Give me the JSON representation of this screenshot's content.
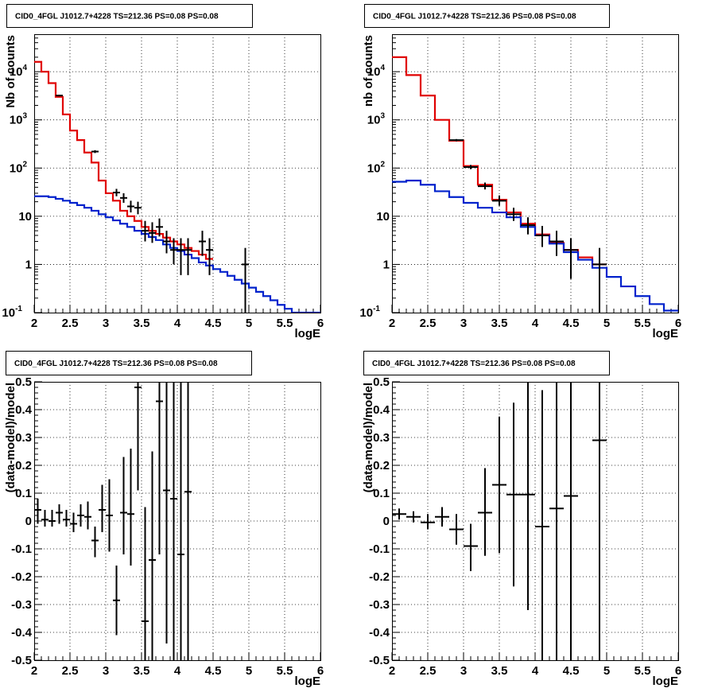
{
  "title": "CID0_4FGL J1012.7+4228 TS=212.36 PS=0.08 PS=0.08",
  "colors": {
    "data": "#000000",
    "total_model": "#e00000",
    "background_model": "#0022cc"
  },
  "chart_data": [
    {
      "type": "line",
      "panel": "top-left",
      "title": "CID0_4FGL J1012.7+4228 TS=212.36 PS=0.08 PS=0.08",
      "xlabel": "logE",
      "ylabel": "Nb of counts",
      "xlim": [
        2,
        6
      ],
      "ylim": [
        0.1,
        60000
      ],
      "yscale": "log",
      "grid": true,
      "x_ticks": [
        "2",
        "2.5",
        "3",
        "3.5",
        "4",
        "4.5",
        "5",
        "5.5",
        "6"
      ],
      "y_ticks": [
        {
          "mantissa": "10",
          "exp": "-1",
          "value": 0.1
        },
        {
          "mantissa": "1",
          "exp": "",
          "value": 1
        },
        {
          "mantissa": "10",
          "exp": "",
          "value": 10
        },
        {
          "mantissa": "10",
          "exp": "2",
          "value": 100
        },
        {
          "mantissa": "10",
          "exp": "3",
          "value": 1000
        },
        {
          "mantissa": "10",
          "exp": "4",
          "value": 10000
        }
      ],
      "bin_edges": [
        2.0,
        2.1,
        2.2,
        2.3,
        2.4,
        2.5,
        2.6,
        2.7,
        2.8,
        2.9,
        3.0,
        3.1,
        3.2,
        3.3,
        3.4,
        3.5,
        3.6,
        3.7,
        3.8,
        3.9,
        4.0,
        4.1,
        4.2,
        4.3,
        4.4,
        4.5,
        4.6,
        4.7,
        4.8,
        4.9,
        5.0,
        5.1,
        5.2,
        5.3,
        5.4,
        5.5,
        5.6,
        5.7,
        5.8,
        5.9,
        6.0
      ],
      "series": [
        {
          "name": "total model",
          "kind": "step",
          "color": "#e00000",
          "values": [
            16000,
            10000,
            5800,
            3000,
            1300,
            600,
            380,
            210,
            130,
            55,
            30,
            21,
            13,
            10,
            8,
            6,
            5,
            4.3,
            3.6,
            3.0,
            2.6,
            2.2,
            1.9,
            1.6,
            1.3
          ]
        },
        {
          "name": "background model",
          "kind": "step",
          "color": "#0022cc",
          "values": [
            26,
            26,
            25,
            23,
            21,
            19,
            17,
            15,
            13,
            11,
            9.5,
            8.2,
            7,
            6,
            5,
            4.3,
            3.7,
            3.2,
            2.6,
            2.2,
            1.9,
            1.6,
            1.35,
            1.1,
            0.95,
            0.8,
            0.7,
            0.58,
            0.48,
            0.4,
            0.33,
            0.27,
            0.22,
            0.18,
            0.145,
            0.12,
            0.1,
            0.1,
            0.1,
            0.1
          ]
        },
        {
          "name": "data",
          "kind": "errorbar",
          "color": "#000000",
          "points": [
            {
              "x": 2.35,
              "y": 3200,
              "lo": 3080,
              "hi": 3320,
              "xerr": 0.05
            },
            {
              "x": 2.85,
              "y": 220,
              "lo": 205,
              "hi": 235,
              "xerr": 0.05
            },
            {
              "x": 3.15,
              "y": 31,
              "lo": 26,
              "hi": 37,
              "xerr": 0.05
            },
            {
              "x": 3.25,
              "y": 24,
              "lo": 19,
              "hi": 30,
              "xerr": 0.05
            },
            {
              "x": 3.35,
              "y": 16,
              "lo": 12,
              "hi": 21,
              "xerr": 0.05
            },
            {
              "x": 3.45,
              "y": 15,
              "lo": 11,
              "hi": 20,
              "xerr": 0.05
            },
            {
              "x": 3.55,
              "y": 5,
              "lo": 3,
              "hi": 8,
              "xerr": 0.05
            },
            {
              "x": 3.65,
              "y": 4.5,
              "lo": 2.8,
              "hi": 7.5,
              "xerr": 0.05
            },
            {
              "x": 3.75,
              "y": 6,
              "lo": 3.8,
              "hi": 9,
              "xerr": 0.05
            },
            {
              "x": 3.85,
              "y": 3,
              "lo": 1.7,
              "hi": 5,
              "xerr": 0.05
            },
            {
              "x": 3.95,
              "y": 2,
              "lo": 1.0,
              "hi": 3.5,
              "xerr": 0.05
            },
            {
              "x": 4.05,
              "y": 2,
              "lo": 0.6,
              "hi": 3.5,
              "xerr": 0.05
            },
            {
              "x": 4.15,
              "y": 2,
              "lo": 0.6,
              "hi": 3.5,
              "xerr": 0.05
            },
            {
              "x": 4.35,
              "y": 3,
              "lo": 1.5,
              "hi": 5,
              "xerr": 0.05
            },
            {
              "x": 4.45,
              "y": 2,
              "lo": 0.6,
              "hi": 3.5,
              "xerr": 0.05
            },
            {
              "x": 4.95,
              "y": 1,
              "lo": 0.1,
              "hi": 2.2,
              "xerr": 0.05
            }
          ]
        }
      ]
    },
    {
      "type": "line",
      "panel": "top-right",
      "title": "CID0_4FGL J1012.7+4228 TS=212.36 PS=0.08 PS=0.08",
      "xlabel": "logE",
      "ylabel": "nb of counts",
      "xlim": [
        2,
        6
      ],
      "ylim": [
        0.1,
        60000
      ],
      "yscale": "log",
      "grid": true,
      "x_ticks": [
        "2",
        "2.5",
        "3",
        "3.5",
        "4",
        "4.5",
        "5",
        "5.5",
        "6"
      ],
      "y_ticks": [
        {
          "mantissa": "10",
          "exp": "-1",
          "value": 0.1
        },
        {
          "mantissa": "1",
          "exp": "",
          "value": 1
        },
        {
          "mantissa": "10",
          "exp": "",
          "value": 10
        },
        {
          "mantissa": "10",
          "exp": "2",
          "value": 100
        },
        {
          "mantissa": "10",
          "exp": "3",
          "value": 1000
        },
        {
          "mantissa": "10",
          "exp": "4",
          "value": 10000
        }
      ],
      "bin_edges": [
        2.0,
        2.2,
        2.4,
        2.6,
        2.8,
        3.0,
        3.2,
        3.4,
        3.6,
        3.8,
        4.0,
        4.2,
        4.4,
        4.6,
        4.8,
        5.0,
        5.2,
        5.4,
        5.6,
        5.8,
        6.0
      ],
      "series": [
        {
          "name": "total model",
          "kind": "step",
          "color": "#e00000",
          "values": [
            20000,
            8500,
            3200,
            1000,
            370,
            110,
            45,
            22,
            12,
            7,
            4.2,
            2.8,
            2.0,
            1.4,
            1.0
          ]
        },
        {
          "name": "background model",
          "kind": "step",
          "color": "#0022cc",
          "values": [
            52,
            55,
            45,
            33,
            25,
            19,
            15,
            12,
            9.5,
            6,
            4,
            2.7,
            1.8,
            1.25,
            0.85,
            0.55,
            0.35,
            0.22,
            0.15,
            0.11
          ]
        },
        {
          "name": "data",
          "kind": "errorbar",
          "color": "#000000",
          "points": [
            {
              "x": 2.9,
              "y": 380,
              "lo": 360,
              "hi": 400,
              "xerr": 0.1
            },
            {
              "x": 3.1,
              "y": 105,
              "lo": 95,
              "hi": 116,
              "xerr": 0.1
            },
            {
              "x": 3.3,
              "y": 42,
              "lo": 36,
              "hi": 50,
              "xerr": 0.1
            },
            {
              "x": 3.5,
              "y": 21,
              "lo": 16.5,
              "hi": 27,
              "xerr": 0.1
            },
            {
              "x": 3.7,
              "y": 11,
              "lo": 8,
              "hi": 15,
              "xerr": 0.1
            },
            {
              "x": 3.9,
              "y": 6.5,
              "lo": 4.2,
              "hi": 9.5,
              "xerr": 0.1
            },
            {
              "x": 4.1,
              "y": 4,
              "lo": 2.3,
              "hi": 6.3,
              "xerr": 0.1
            },
            {
              "x": 4.3,
              "y": 3,
              "lo": 1.5,
              "hi": 5,
              "xerr": 0.1
            },
            {
              "x": 4.5,
              "y": 2,
              "lo": 0.5,
              "hi": 3.5,
              "xerr": 0.1
            },
            {
              "x": 4.9,
              "y": 1,
              "lo": 0.1,
              "hi": 2.2,
              "xerr": 0.1
            }
          ]
        }
      ]
    },
    {
      "type": "scatter",
      "panel": "bottom-left",
      "title": "CID0_4FGL J1012.7+4228 TS=212.36 PS=0.08 PS=0.08",
      "xlabel": "logE",
      "ylabel": "(data-model)/model",
      "xlim": [
        2,
        6
      ],
      "ylim": [
        -0.5,
        0.5
      ],
      "yscale": "linear",
      "grid": true,
      "x_ticks": [
        "2",
        "2.5",
        "3",
        "3.5",
        "4",
        "4.5",
        "5",
        "5.5",
        "6"
      ],
      "y_ticks": [
        {
          "mantissa": "-0.5",
          "exp": "",
          "value": -0.5
        },
        {
          "mantissa": "-0.4",
          "exp": "",
          "value": -0.4
        },
        {
          "mantissa": "-0.3",
          "exp": "",
          "value": -0.3
        },
        {
          "mantissa": "-0.2",
          "exp": "",
          "value": -0.2
        },
        {
          "mantissa": "-0.1",
          "exp": "",
          "value": -0.1
        },
        {
          "mantissa": "0",
          "exp": "",
          "value": 0
        },
        {
          "mantissa": "0.1",
          "exp": "",
          "value": 0.1
        },
        {
          "mantissa": "0.2",
          "exp": "",
          "value": 0.2
        },
        {
          "mantissa": "0.3",
          "exp": "",
          "value": 0.3
        },
        {
          "mantissa": "0.4",
          "exp": "",
          "value": 0.4
        },
        {
          "mantissa": "0.5",
          "exp": "",
          "value": 0.5
        }
      ],
      "series": [
        {
          "name": "residuals",
          "kind": "errorbar",
          "color": "#000000",
          "points": [
            {
              "x": 2.05,
              "y": 0.04,
              "lo": -0.01,
              "hi": 0.08,
              "xerr": 0.05
            },
            {
              "x": 2.15,
              "y": 0.005,
              "lo": -0.02,
              "hi": 0.04,
              "xerr": 0.05
            },
            {
              "x": 2.25,
              "y": 0.0,
              "lo": -0.02,
              "hi": 0.04,
              "xerr": 0.05
            },
            {
              "x": 2.35,
              "y": 0.03,
              "lo": -0.01,
              "hi": 0.06,
              "xerr": 0.05
            },
            {
              "x": 2.45,
              "y": 0.005,
              "lo": -0.02,
              "hi": 0.04,
              "xerr": 0.05
            },
            {
              "x": 2.55,
              "y": -0.01,
              "lo": -0.04,
              "hi": 0.03,
              "xerr": 0.05
            },
            {
              "x": 2.65,
              "y": 0.02,
              "lo": -0.02,
              "hi": 0.06,
              "xerr": 0.05
            },
            {
              "x": 2.75,
              "y": 0.015,
              "lo": -0.03,
              "hi": 0.07,
              "xerr": 0.05
            },
            {
              "x": 2.85,
              "y": -0.07,
              "lo": -0.13,
              "hi": -0.02,
              "xerr": 0.05
            },
            {
              "x": 2.95,
              "y": 0.04,
              "lo": -0.04,
              "hi": 0.13,
              "xerr": 0.05
            },
            {
              "x": 3.05,
              "y": 0.02,
              "lo": -0.11,
              "hi": 0.15,
              "xerr": 0.05
            },
            {
              "x": 3.15,
              "y": -0.285,
              "lo": -0.41,
              "hi": -0.16,
              "xerr": 0.05
            },
            {
              "x": 3.25,
              "y": 0.03,
              "lo": -0.12,
              "hi": 0.23,
              "xerr": 0.05
            },
            {
              "x": 3.35,
              "y": 0.025,
              "lo": -0.16,
              "hi": 0.26,
              "xerr": 0.05
            },
            {
              "x": 3.45,
              "y": 0.48,
              "lo": 0.11,
              "hi": 0.5,
              "xerr": 0.05
            },
            {
              "x": 3.55,
              "y": -0.36,
              "lo": -0.5,
              "hi": 0.05,
              "xerr": 0.05
            },
            {
              "x": 3.65,
              "y": -0.14,
              "lo": -0.5,
              "hi": 0.25,
              "xerr": 0.05
            },
            {
              "x": 3.75,
              "y": 0.43,
              "lo": -0.12,
              "hi": 0.5,
              "xerr": 0.05
            },
            {
              "x": 3.85,
              "y": 0.11,
              "lo": -0.44,
              "hi": 0.5,
              "xerr": 0.05
            },
            {
              "x": 3.95,
              "y": 0.08,
              "lo": -0.5,
              "hi": 0.5,
              "xerr": 0.05
            },
            {
              "x": 4.05,
              "y": -0.12,
              "lo": -0.5,
              "hi": 0.5,
              "xerr": 0.05
            },
            {
              "x": 4.15,
              "y": 0.105,
              "lo": -0.5,
              "hi": 0.5,
              "xerr": 0.05
            }
          ]
        }
      ]
    },
    {
      "type": "scatter",
      "panel": "bottom-right",
      "title": "CID0_4FGL J1012.7+4228 TS=212.36 PS=0.08 PS=0.08",
      "xlabel": "logE",
      "ylabel": "(data-model)/model",
      "xlim": [
        2,
        6
      ],
      "ylim": [
        -0.5,
        0.5
      ],
      "yscale": "linear",
      "grid": true,
      "x_ticks": [
        "2",
        "2.5",
        "3",
        "3.5",
        "4",
        "4.5",
        "5",
        "5.5",
        "6"
      ],
      "y_ticks": [
        {
          "mantissa": "-0.5",
          "exp": "",
          "value": -0.5
        },
        {
          "mantissa": "-0.4",
          "exp": "",
          "value": -0.4
        },
        {
          "mantissa": "-0.3",
          "exp": "",
          "value": -0.3
        },
        {
          "mantissa": "-0.2",
          "exp": "",
          "value": -0.2
        },
        {
          "mantissa": "-0.1",
          "exp": "",
          "value": -0.1
        },
        {
          "mantissa": "0",
          "exp": "",
          "value": 0
        },
        {
          "mantissa": "0.1",
          "exp": "",
          "value": 0.1
        },
        {
          "mantissa": "0.2",
          "exp": "",
          "value": 0.2
        },
        {
          "mantissa": "0.3",
          "exp": "",
          "value": 0.3
        },
        {
          "mantissa": "0.4",
          "exp": "",
          "value": 0.4
        },
        {
          "mantissa": "0.5",
          "exp": "",
          "value": 0.5
        }
      ],
      "series": [
        {
          "name": "residuals",
          "kind": "errorbar",
          "color": "#000000",
          "points": [
            {
              "x": 2.1,
              "y": 0.025,
              "lo": 0.005,
              "hi": 0.045,
              "xerr": 0.1
            },
            {
              "x": 2.3,
              "y": 0.015,
              "lo": -0.005,
              "hi": 0.035,
              "xerr": 0.1
            },
            {
              "x": 2.5,
              "y": -0.005,
              "lo": -0.03,
              "hi": 0.025,
              "xerr": 0.1
            },
            {
              "x": 2.7,
              "y": 0.015,
              "lo": -0.02,
              "hi": 0.05,
              "xerr": 0.1
            },
            {
              "x": 2.9,
              "y": -0.03,
              "lo": -0.085,
              "hi": 0.025,
              "xerr": 0.1
            },
            {
              "x": 3.1,
              "y": -0.09,
              "lo": -0.18,
              "hi": -0.01,
              "xerr": 0.1
            },
            {
              "x": 3.3,
              "y": 0.03,
              "lo": -0.125,
              "hi": 0.19,
              "xerr": 0.1
            },
            {
              "x": 3.5,
              "y": 0.13,
              "lo": -0.115,
              "hi": 0.375,
              "xerr": 0.1
            },
            {
              "x": 3.7,
              "y": 0.095,
              "lo": -0.235,
              "hi": 0.425,
              "xerr": 0.1
            },
            {
              "x": 3.9,
              "y": 0.095,
              "lo": -0.32,
              "hi": 0.5,
              "xerr": 0.1
            },
            {
              "x": 4.1,
              "y": -0.02,
              "lo": -0.5,
              "hi": 0.47,
              "xerr": 0.1
            },
            {
              "x": 4.3,
              "y": 0.045,
              "lo": -0.5,
              "hi": 0.5,
              "xerr": 0.1
            },
            {
              "x": 4.5,
              "y": 0.09,
              "lo": -0.5,
              "hi": 0.5,
              "xerr": 0.1
            },
            {
              "x": 4.9,
              "y": 0.29,
              "lo": -0.5,
              "hi": 0.5,
              "xerr": 0.1
            }
          ]
        }
      ]
    }
  ]
}
